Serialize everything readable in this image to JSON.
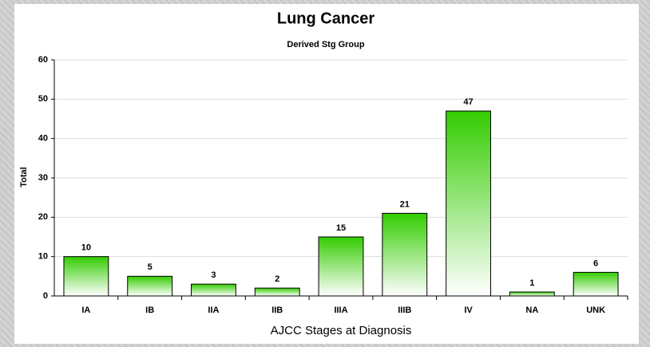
{
  "chart_data": {
    "type": "bar",
    "title": "Lung Cancer",
    "subtitle": "Derived Stg Group",
    "x_label": "AJCC Stages at Diagnosis",
    "y_label": "Total",
    "categories": [
      "IA",
      "IB",
      "IIA",
      "IIB",
      "IIIA",
      "IIIB",
      "IV",
      "NA",
      "UNK"
    ],
    "values": [
      10,
      5,
      3,
      2,
      15,
      21,
      47,
      1,
      6
    ],
    "color": "#33cc00",
    "ylim": [
      0,
      60
    ],
    "yticks": [
      0,
      10,
      20,
      30,
      40,
      50,
      60
    ],
    "grid": true
  }
}
